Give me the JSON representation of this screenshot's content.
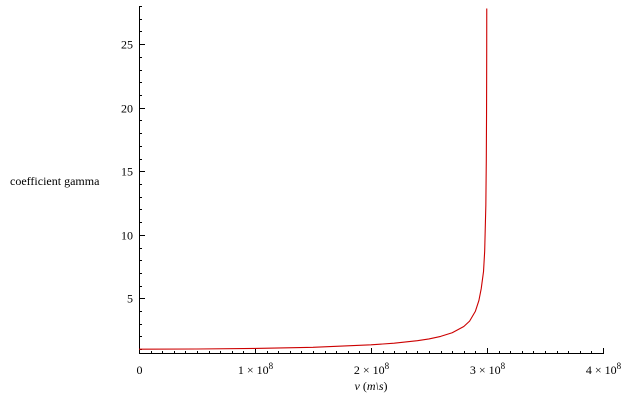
{
  "chart_data": {
    "type": "line",
    "title": "",
    "ylabel": "coefficient gamma",
    "xlabel": {
      "var": "v",
      "open": " (",
      "unit": "m\\s",
      "close": ")"
    },
    "xlim": [
      0,
      400000000
    ],
    "ylim": [
      0.7,
      28
    ],
    "x_ticks": [
      {
        "value": 0,
        "label": "0"
      },
      {
        "value": 100000000,
        "mantissa": "1 × 10",
        "exp": "8"
      },
      {
        "value": 200000000,
        "mantissa": "2 × 10",
        "exp": "8"
      },
      {
        "value": 300000000,
        "mantissa": "3 × 10",
        "exp": "8"
      },
      {
        "value": 400000000,
        "mantissa": "4 × 10",
        "exp": "8"
      }
    ],
    "y_ticks": [
      {
        "value": 5,
        "label": "5"
      },
      {
        "value": 10,
        "label": "10"
      },
      {
        "value": 15,
        "label": "15"
      },
      {
        "value": 20,
        "label": "20"
      },
      {
        "value": 25,
        "label": "25"
      }
    ],
    "grid": false,
    "series": [
      {
        "color": "#cc0000",
        "x": [
          0,
          50000000,
          100000000,
          150000000,
          200000000,
          220000000,
          240000000,
          250000000,
          260000000,
          270000000,
          280000000,
          285000000,
          290000000,
          293000000,
          295000000,
          297000000,
          298000000,
          299000000,
          299400000,
          299600000,
          299700000,
          299750000,
          299780000,
          299790000
        ],
        "y": [
          1.0,
          1.014,
          1.061,
          1.147,
          1.342,
          1.472,
          1.671,
          1.809,
          2.005,
          2.294,
          2.785,
          3.206,
          3.987,
          4.826,
          5.754,
          7.107,
          8.716,
          12.32,
          15.9,
          19.47,
          22.48,
          24.62,
          26.76,
          27.8
        ]
      }
    ]
  }
}
